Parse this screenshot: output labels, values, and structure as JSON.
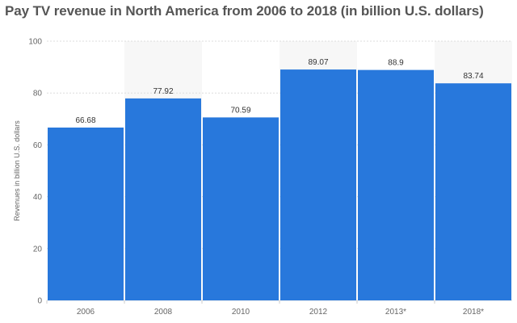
{
  "chart_data": {
    "type": "bar",
    "title": "Pay TV revenue in North America from 2006 to 2018 (in billion U.S. dollars)",
    "xlabel": "",
    "ylabel": "Revenues in billion U.S. dollars",
    "categories": [
      "2006",
      "2008",
      "2010",
      "2012",
      "2013*",
      "2018*"
    ],
    "values": [
      66.68,
      77.92,
      70.59,
      89.07,
      88.9,
      83.74
    ],
    "value_labels": [
      "66.68",
      "77.92",
      "70.59",
      "89.07",
      "88.9",
      "83.74"
    ],
    "ylim": [
      0,
      100
    ],
    "yticks": [
      0,
      20,
      40,
      60,
      80,
      100
    ],
    "grid": true,
    "legend": "none",
    "bar_color": "#2878dc",
    "band_color": "#f7f7f7",
    "gridline_color": "#dddddd"
  }
}
